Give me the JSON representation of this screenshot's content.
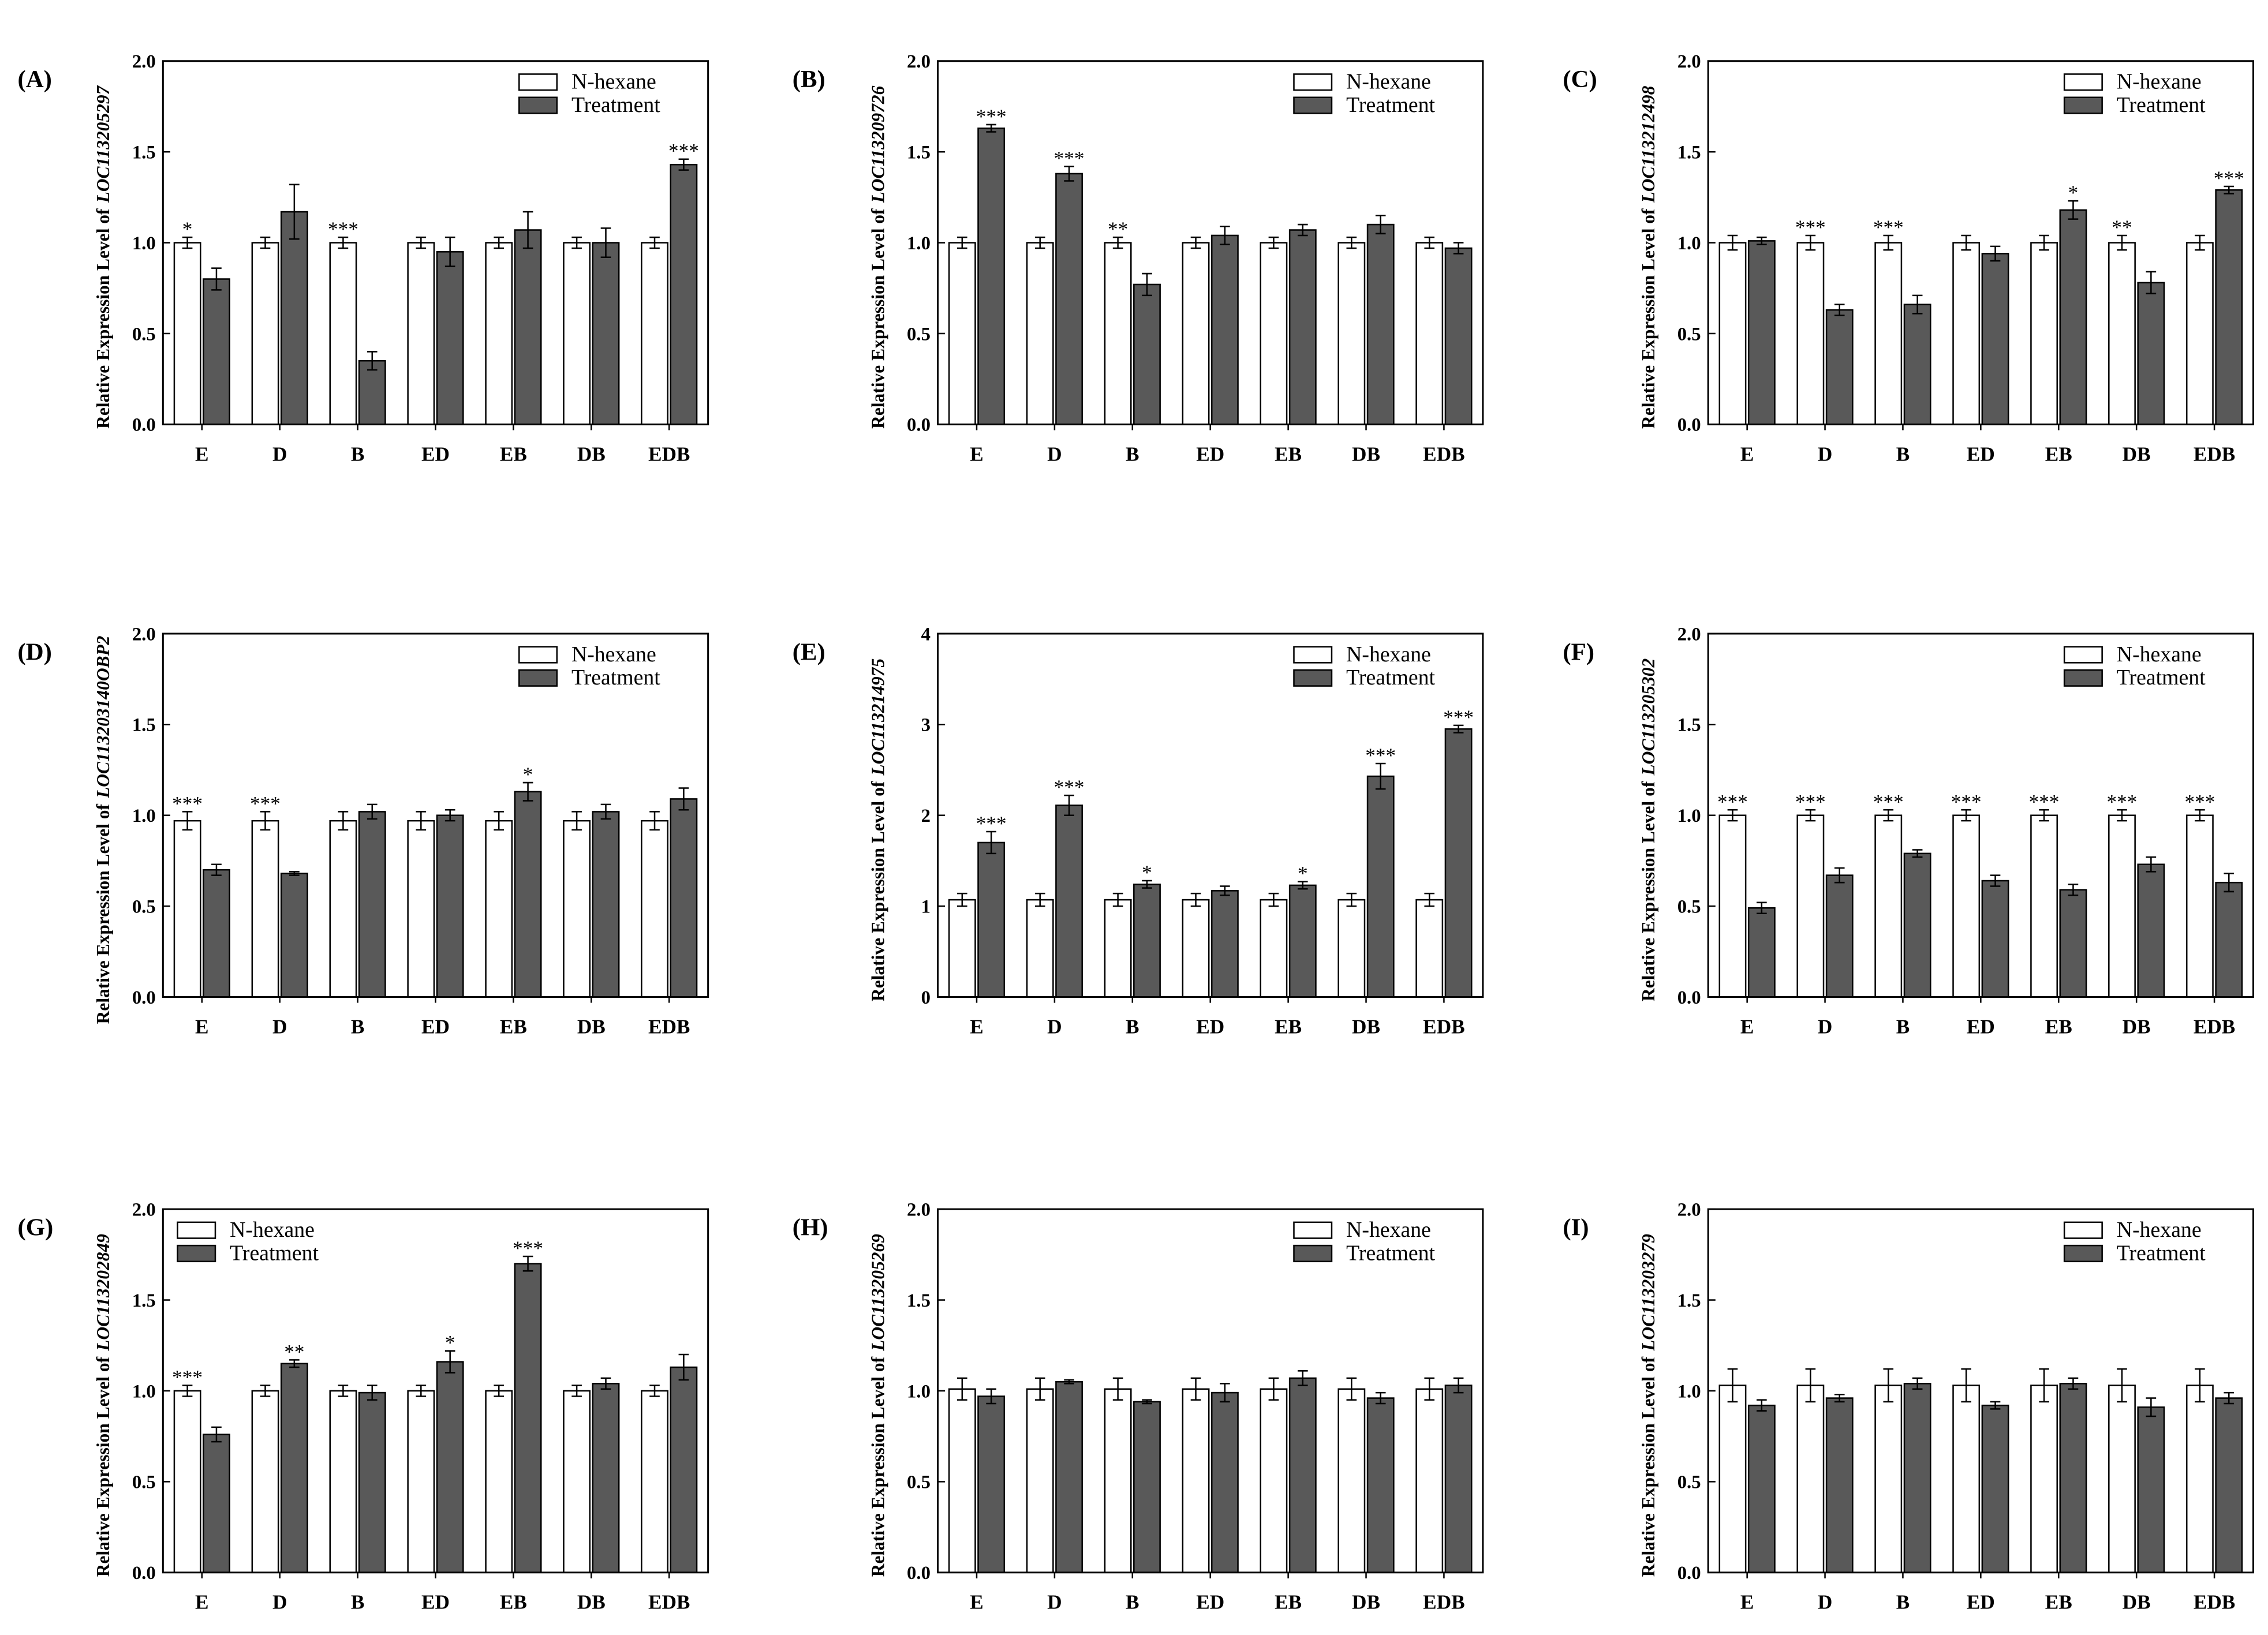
{
  "chart_data": [
    {
      "type": "bar",
      "panel_label": "(A)",
      "ylabel": "Relative Expression Level of",
      "gene": "LOC113205297",
      "categories": [
        "E",
        "D",
        "B",
        "ED",
        "EB",
        "DB",
        "EDB"
      ],
      "series": [
        {
          "name": "N-hexane",
          "color": "#ffffff",
          "values": [
            1.0,
            1.0,
            1.0,
            1.0,
            1.0,
            1.0,
            1.0
          ],
          "errors": [
            0.03,
            0.03,
            0.03,
            0.03,
            0.03,
            0.03,
            0.03
          ]
        },
        {
          "name": "Treatment",
          "color": "#595959",
          "values": [
            0.8,
            1.17,
            0.35,
            0.95,
            1.07,
            1.0,
            1.43
          ],
          "errors": [
            0.06,
            0.15,
            0.05,
            0.08,
            0.1,
            0.08,
            0.03
          ]
        }
      ],
      "significance": [
        "*",
        null,
        "***",
        null,
        null,
        null,
        "***"
      ],
      "ylim": [
        0,
        2
      ],
      "yticks": [
        {
          "value": 0,
          "label": "0.0"
        },
        0.5,
        {
          "value": 1,
          "label": "1.0"
        },
        1.5,
        {
          "value": 2,
          "label": "2.0"
        }
      ],
      "legend": "upper right"
    },
    {
      "type": "bar",
      "panel_label": "(B)",
      "ylabel": "Relative Expression Level of",
      "gene": "LOC113209726",
      "categories": [
        "E",
        "D",
        "B",
        "ED",
        "EB",
        "DB",
        "EDB"
      ],
      "series": [
        {
          "name": "N-hexane",
          "color": "#ffffff",
          "values": [
            1.0,
            1.0,
            1.0,
            1.0,
            1.0,
            1.0,
            1.0
          ],
          "errors": [
            0.03,
            0.03,
            0.03,
            0.03,
            0.03,
            0.03,
            0.03
          ]
        },
        {
          "name": "Treatment",
          "color": "#595959",
          "values": [
            1.63,
            1.38,
            0.77,
            1.04,
            1.07,
            1.1,
            0.97
          ],
          "errors": [
            0.02,
            0.04,
            0.06,
            0.05,
            0.03,
            0.05,
            0.03
          ]
        }
      ],
      "significance": [
        "***",
        "***",
        "**",
        null,
        null,
        null,
        null
      ],
      "ylim": [
        0,
        2
      ],
      "yticks": [
        {
          "value": 0,
          "label": "0.0"
        },
        0.5,
        {
          "value": 1,
          "label": "1.0"
        },
        1.5,
        {
          "value": 2,
          "label": "2.0"
        }
      ],
      "legend": "upper right"
    },
    {
      "type": "bar",
      "panel_label": "(C)",
      "ylabel": "Relative Expression Level of",
      "gene": "LOC113212498",
      "categories": [
        "E",
        "D",
        "B",
        "ED",
        "EB",
        "DB",
        "EDB"
      ],
      "series": [
        {
          "name": "N-hexane",
          "color": "#ffffff",
          "values": [
            1.0,
            1.0,
            1.0,
            1.0,
            1.0,
            1.0,
            1.0
          ],
          "errors": [
            0.04,
            0.04,
            0.04,
            0.04,
            0.04,
            0.04,
            0.04
          ]
        },
        {
          "name": "Treatment",
          "color": "#595959",
          "values": [
            1.01,
            0.63,
            0.66,
            0.94,
            1.18,
            0.78,
            1.29
          ],
          "errors": [
            0.02,
            0.03,
            0.05,
            0.04,
            0.05,
            0.06,
            0.02
          ]
        }
      ],
      "significance": [
        null,
        "***",
        "***",
        null,
        "*",
        "**",
        "***"
      ],
      "ylim": [
        0,
        2
      ],
      "yticks": [
        {
          "value": 0,
          "label": "0.0"
        },
        0.5,
        {
          "value": 1,
          "label": "1.0"
        },
        1.5,
        {
          "value": 2,
          "label": "2.0"
        }
      ],
      "legend": "upper right"
    },
    {
      "type": "bar",
      "panel_label": "(D)",
      "ylabel": "Relative Expression Level of",
      "gene": "LOC113203140OBP2",
      "categories": [
        "E",
        "D",
        "B",
        "ED",
        "EB",
        "DB",
        "EDB"
      ],
      "series": [
        {
          "name": "N-hexane",
          "color": "#ffffff",
          "values": [
            0.97,
            0.97,
            0.97,
            0.97,
            0.97,
            0.97,
            0.97
          ],
          "errors": [
            0.05,
            0.05,
            0.05,
            0.05,
            0.05,
            0.05,
            0.05
          ]
        },
        {
          "name": "Treatment",
          "color": "#595959",
          "values": [
            0.7,
            0.68,
            1.02,
            1.0,
            1.13,
            1.02,
            1.09
          ],
          "errors": [
            0.03,
            0.01,
            0.04,
            0.03,
            0.05,
            0.04,
            0.06
          ]
        }
      ],
      "significance": [
        "***",
        "***",
        null,
        null,
        "*",
        null,
        null
      ],
      "ylim": [
        0,
        2
      ],
      "yticks": [
        {
          "value": 0,
          "label": "0.0"
        },
        0.5,
        {
          "value": 1,
          "label": "1.0"
        },
        1.5,
        {
          "value": 2,
          "label": "2.0"
        }
      ],
      "legend": "upper right"
    },
    {
      "type": "bar",
      "panel_label": "(E)",
      "ylabel": "Relative Expression Level of",
      "gene": "LOC113214975",
      "categories": [
        "E",
        "D",
        "B",
        "ED",
        "EB",
        "DB",
        "EDB"
      ],
      "series": [
        {
          "name": "N-hexane",
          "color": "#ffffff",
          "values": [
            1.07,
            1.07,
            1.07,
            1.07,
            1.07,
            1.07,
            1.07
          ],
          "errors": [
            0.07,
            0.07,
            0.07,
            0.07,
            0.07,
            0.07,
            0.07
          ]
        },
        {
          "name": "Treatment",
          "color": "#595959",
          "values": [
            1.7,
            2.11,
            1.24,
            1.17,
            1.23,
            2.43,
            2.95
          ],
          "errors": [
            0.12,
            0.11,
            0.04,
            0.05,
            0.04,
            0.14,
            0.04
          ]
        }
      ],
      "significance": [
        "***",
        "***",
        "*",
        null,
        "*",
        "***",
        "***"
      ],
      "ylim": [
        0,
        4
      ],
      "yticks": [
        0,
        1,
        2,
        3,
        4
      ],
      "legend": "upper right"
    },
    {
      "type": "bar",
      "panel_label": "(F)",
      "ylabel": "Relative Expression Level of",
      "gene": "LOC113205302",
      "categories": [
        "E",
        "D",
        "B",
        "ED",
        "EB",
        "DB",
        "EDB"
      ],
      "series": [
        {
          "name": "N-hexane",
          "color": "#ffffff",
          "values": [
            1.0,
            1.0,
            1.0,
            1.0,
            1.0,
            1.0,
            1.0
          ],
          "errors": [
            0.03,
            0.03,
            0.03,
            0.03,
            0.03,
            0.03,
            0.03
          ]
        },
        {
          "name": "Treatment",
          "color": "#595959",
          "values": [
            0.49,
            0.67,
            0.79,
            0.64,
            0.59,
            0.73,
            0.63
          ],
          "errors": [
            0.03,
            0.04,
            0.02,
            0.03,
            0.03,
            0.04,
            0.05
          ]
        }
      ],
      "significance": [
        "***",
        "***",
        "***",
        "***",
        "***",
        "***",
        "***"
      ],
      "ylim": [
        0,
        2
      ],
      "yticks": [
        {
          "value": 0,
          "label": "0.0"
        },
        0.5,
        {
          "value": 1,
          "label": "1.0"
        },
        1.5,
        {
          "value": 2,
          "label": "2.0"
        }
      ],
      "legend": "upper right"
    },
    {
      "type": "bar",
      "panel_label": "(G)",
      "ylabel": "Relative Expression Level of",
      "gene": "LOC113202849",
      "categories": [
        "E",
        "D",
        "B",
        "ED",
        "EB",
        "DB",
        "EDB"
      ],
      "series": [
        {
          "name": "N-hexane",
          "color": "#ffffff",
          "values": [
            1.0,
            1.0,
            1.0,
            1.0,
            1.0,
            1.0,
            1.0
          ],
          "errors": [
            0.03,
            0.03,
            0.03,
            0.03,
            0.03,
            0.03,
            0.03
          ]
        },
        {
          "name": "Treatment",
          "color": "#595959",
          "values": [
            0.76,
            1.15,
            0.99,
            1.16,
            1.7,
            1.04,
            1.13
          ],
          "errors": [
            0.04,
            0.02,
            0.04,
            0.06,
            0.04,
            0.03,
            0.07
          ]
        }
      ],
      "significance": [
        "***",
        "**",
        null,
        "*",
        "***",
        null,
        null
      ],
      "ylim": [
        0,
        2
      ],
      "yticks": [
        {
          "value": 0,
          "label": "0.0"
        },
        0.5,
        {
          "value": 1,
          "label": "1.0"
        },
        1.5,
        {
          "value": 2,
          "label": "2.0"
        }
      ],
      "legend": "upper left"
    },
    {
      "type": "bar",
      "panel_label": "(H)",
      "ylabel": "Relative Expression Level of",
      "gene": "LOC113205269",
      "categories": [
        "E",
        "D",
        "B",
        "ED",
        "EB",
        "DB",
        "EDB"
      ],
      "series": [
        {
          "name": "N-hexane",
          "color": "#ffffff",
          "values": [
            1.01,
            1.01,
            1.01,
            1.01,
            1.01,
            1.01,
            1.01
          ],
          "errors": [
            0.06,
            0.06,
            0.06,
            0.06,
            0.06,
            0.06,
            0.06
          ]
        },
        {
          "name": "Treatment",
          "color": "#595959",
          "values": [
            0.97,
            1.05,
            0.94,
            0.99,
            1.07,
            0.96,
            1.03
          ],
          "errors": [
            0.04,
            0.01,
            0.01,
            0.05,
            0.04,
            0.03,
            0.04
          ]
        }
      ],
      "significance": [
        null,
        null,
        null,
        null,
        null,
        null,
        null
      ],
      "ylim": [
        0,
        2
      ],
      "yticks": [
        {
          "value": 0,
          "label": "0.0"
        },
        0.5,
        {
          "value": 1,
          "label": "1.0"
        },
        1.5,
        {
          "value": 2,
          "label": "2.0"
        }
      ],
      "legend": "upper right"
    },
    {
      "type": "bar",
      "panel_label": "(I)",
      "ylabel": "Relative Expression Level of",
      "gene": "LOC113203279",
      "categories": [
        "E",
        "D",
        "B",
        "ED",
        "EB",
        "DB",
        "EDB"
      ],
      "series": [
        {
          "name": "N-hexane",
          "color": "#ffffff",
          "values": [
            1.03,
            1.03,
            1.03,
            1.03,
            1.03,
            1.03,
            1.03
          ],
          "errors": [
            0.09,
            0.09,
            0.09,
            0.09,
            0.09,
            0.09,
            0.09
          ]
        },
        {
          "name": "Treatment",
          "color": "#595959",
          "values": [
            0.92,
            0.96,
            1.04,
            0.92,
            1.04,
            0.91,
            0.96
          ],
          "errors": [
            0.03,
            0.02,
            0.03,
            0.02,
            0.03,
            0.05,
            0.03
          ]
        }
      ],
      "significance": [
        null,
        null,
        null,
        null,
        null,
        null,
        null
      ],
      "ylim": [
        0,
        2
      ],
      "yticks": [
        {
          "value": 0,
          "label": "0.0"
        },
        0.5,
        {
          "value": 1,
          "label": "1.0"
        },
        1.5,
        {
          "value": 2,
          "label": "2.0"
        }
      ],
      "legend": "upper right"
    }
  ]
}
